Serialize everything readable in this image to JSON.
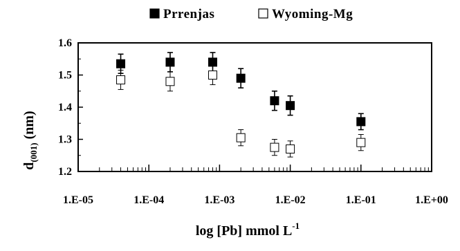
{
  "chart_data": {
    "type": "scatter",
    "x_scale": "log",
    "x_ticks": [
      "1.E-05",
      "1.E-04",
      "1.E-03",
      "1.E-02",
      "1.E-01",
      "1.E+00"
    ],
    "x_tick_values": [
      1e-05,
      0.0001,
      0.001,
      0.01,
      0.1,
      1
    ],
    "xlim": [
      1e-05,
      1
    ],
    "ylim": [
      1.2,
      1.6
    ],
    "y_ticks": [
      "1.2",
      "1.3",
      "1.4",
      "1.5",
      "1.6"
    ],
    "y_tick_values": [
      1.2,
      1.3,
      1.4,
      1.5,
      1.6
    ],
    "xlabel_main": "log [Pb] mmol L",
    "xlabel_sup": "-1",
    "ylabel_main": "d",
    "ylabel_sub": "(001)",
    "ylabel_unit": "(nm)",
    "grid": false,
    "legend_position": "top",
    "series": [
      {
        "name": "Prrenjas",
        "marker": "filled-square",
        "color": "#000000",
        "points": [
          {
            "x": 4e-05,
            "y": 1.535,
            "err": 0.03
          },
          {
            "x": 0.0002,
            "y": 1.54,
            "err": 0.03
          },
          {
            "x": 0.0008,
            "y": 1.54,
            "err": 0.03
          },
          {
            "x": 0.002,
            "y": 1.49,
            "err": 0.03
          },
          {
            "x": 0.006,
            "y": 1.42,
            "err": 0.03
          },
          {
            "x": 0.01,
            "y": 1.405,
            "err": 0.03
          },
          {
            "x": 0.1,
            "y": 1.355,
            "err": 0.025
          }
        ]
      },
      {
        "name": "Wyoming-Mg",
        "marker": "open-square",
        "color": "#000000",
        "points": [
          {
            "x": 4e-05,
            "y": 1.485,
            "err": 0.03
          },
          {
            "x": 0.0002,
            "y": 1.48,
            "err": 0.03
          },
          {
            "x": 0.0008,
            "y": 1.5,
            "err": 0.03
          },
          {
            "x": 0.002,
            "y": 1.305,
            "err": 0.025
          },
          {
            "x": 0.006,
            "y": 1.275,
            "err": 0.025
          },
          {
            "x": 0.01,
            "y": 1.27,
            "err": 0.025
          },
          {
            "x": 0.1,
            "y": 1.29,
            "err": 0.025
          }
        ]
      }
    ]
  }
}
